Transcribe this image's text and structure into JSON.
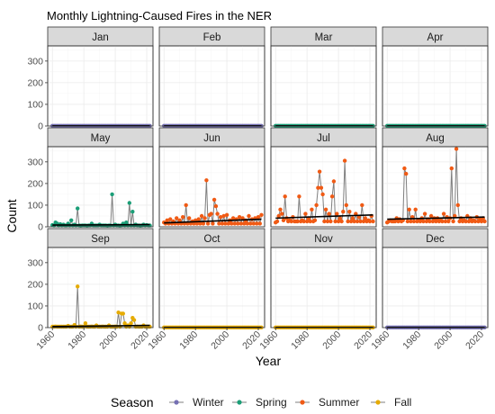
{
  "chart_data": {
    "type": "line",
    "facet": "month",
    "title": "Monthly Lightning-Caused Fires in the NER",
    "xlabel": "Year",
    "ylabel": "Count",
    "xlim": [
      1957,
      2024
    ],
    "ylim": [
      0,
      370
    ],
    "x_ticks": [
      "1960",
      "1980",
      "2000",
      "2020"
    ],
    "y_ticks": [
      "0",
      "100",
      "200",
      "300"
    ],
    "grid": true,
    "legend": {
      "title": "Season",
      "position": "bottom",
      "entries": [
        {
          "label": "Winter",
          "color": "#7570b3"
        },
        {
          "label": "Spring",
          "color": "#1b9e77"
        },
        {
          "label": "Summer",
          "color": "#f05a14"
        },
        {
          "label": "Fall",
          "color": "#e6ab02"
        }
      ]
    },
    "trend_color": "#000000",
    "connector_color": "#7f7f7f",
    "year_start": 1960,
    "year_end": 2022,
    "panels": [
      {
        "month": "Jan",
        "season": "Winter",
        "default": 1,
        "spikes": {},
        "trend": [
          1,
          1
        ]
      },
      {
        "month": "Feb",
        "season": "Winter",
        "default": 1,
        "spikes": {},
        "trend": [
          1,
          1
        ]
      },
      {
        "month": "Mar",
        "season": "Spring",
        "default": 1,
        "spikes": {},
        "trend": [
          1,
          1
        ]
      },
      {
        "month": "Apr",
        "season": "Spring",
        "default": 1,
        "spikes": {},
        "trend": [
          1,
          1
        ]
      },
      {
        "month": "May",
        "season": "Spring",
        "default": 6,
        "spikes": {
          "1960": 8,
          "1962": 20,
          "1963": 15,
          "1965": 12,
          "1967": 10,
          "1970": 15,
          "1972": 30,
          "1974": 10,
          "1976": 85,
          "1978": 5,
          "1982": 5,
          "1985": 15,
          "1990": 10,
          "1995": 5,
          "1998": 150,
          "2000": 10,
          "2003": 5,
          "2005": 15,
          "2007": 20,
          "2009": 110,
          "2011": 70,
          "2013": 10,
          "2016": 5,
          "2018": 10,
          "2020": 8
        },
        "trend": [
          8,
          10
        ]
      },
      {
        "month": "Jun",
        "season": "Summer",
        "default": 15,
        "spikes": {
          "1960": 20,
          "1962": 30,
          "1964": 35,
          "1966": 25,
          "1968": 40,
          "1970": 30,
          "1972": 45,
          "1974": 100,
          "1976": 40,
          "1978": 25,
          "1980": 30,
          "1982": 35,
          "1984": 50,
          "1986": 40,
          "1987": 215,
          "1989": 55,
          "1990": 60,
          "1992": 125,
          "1993": 95,
          "1994": 60,
          "1996": 45,
          "1998": 50,
          "2000": 55,
          "2002": 30,
          "2004": 40,
          "2006": 35,
          "2008": 45,
          "2010": 40,
          "2012": 30,
          "2014": 50,
          "2016": 35,
          "2018": 40,
          "2020": 45,
          "2022": 55
        },
        "trend": [
          18,
          35
        ]
      },
      {
        "month": "Jul",
        "season": "Summer",
        "default": 25,
        "spikes": {
          "1960": 20,
          "1962": 50,
          "1963": 80,
          "1964": 60,
          "1965": 30,
          "1966": 140,
          "1967": 40,
          "1969": 30,
          "1971": 45,
          "1973": 25,
          "1975": 140,
          "1977": 30,
          "1979": 60,
          "1981": 40,
          "1983": 80,
          "1985": 30,
          "1986": 100,
          "1987": 180,
          "1988": 255,
          "1989": 180,
          "1990": 150,
          "1992": 80,
          "1994": 60,
          "1996": 140,
          "1997": 210,
          "1999": 60,
          "2001": 40,
          "2003": 70,
          "2004": 305,
          "2005": 100,
          "2007": 70,
          "2009": 40,
          "2011": 60,
          "2013": 45,
          "2015": 100,
          "2017": 40,
          "2019": 30,
          "2021": 50
        },
        "trend": [
          40,
          55
        ]
      },
      {
        "month": "Aug",
        "season": "Summer",
        "default": 25,
        "spikes": {
          "1960": 20,
          "1962": 30,
          "1964": 25,
          "1966": 40,
          "1968": 35,
          "1970": 30,
          "1971": 270,
          "1972": 245,
          "1974": 80,
          "1976": 45,
          "1978": 80,
          "1980": 30,
          "1982": 40,
          "1984": 60,
          "1986": 35,
          "1988": 50,
          "1990": 40,
          "1992": 40,
          "1994": 30,
          "1996": 60,
          "1998": 45,
          "2000": 40,
          "2001": 270,
          "2003": 50,
          "2004": 360,
          "2005": 100,
          "2007": 40,
          "2009": 30,
          "2011": 50,
          "2013": 40,
          "2015": 30,
          "2017": 45,
          "2019": 35,
          "2021": 40
        },
        "trend": [
          35,
          45
        ]
      },
      {
        "month": "Sep",
        "season": "Fall",
        "default": 4,
        "spikes": {
          "1962": 5,
          "1970": 8,
          "1974": 12,
          "1976": 190,
          "1978": 5,
          "1981": 20,
          "1985": 5,
          "1988": 10,
          "1992": 5,
          "1996": 10,
          "2000": 5,
          "2002": 70,
          "2004": 65,
          "2005": 65,
          "2006": 20,
          "2008": 10,
          "2010": 20,
          "2011": 45,
          "2012": 35,
          "2014": 5,
          "2018": 10,
          "2020": 5
        },
        "trend": [
          5,
          10
        ]
      },
      {
        "month": "Oct",
        "season": "Fall",
        "default": 1,
        "spikes": {},
        "trend": [
          1,
          1
        ]
      },
      {
        "month": "Nov",
        "season": "Fall",
        "default": 1,
        "spikes": {},
        "trend": [
          1,
          1
        ]
      },
      {
        "month": "Dec",
        "season": "Winter",
        "default": 1,
        "spikes": {},
        "trend": [
          1,
          1
        ]
      }
    ]
  }
}
